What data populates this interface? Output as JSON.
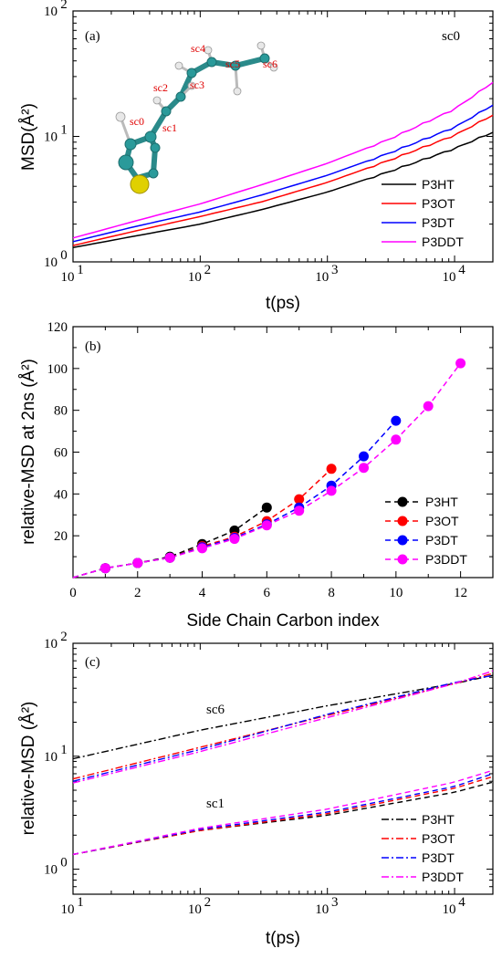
{
  "chart_data": [
    {
      "panel_label": "(a)",
      "type": "line",
      "xlabel": "t(ps)",
      "ylabel": "MSD(Å²)",
      "xscale": "log",
      "yscale": "log",
      "xlim": [
        10,
        20000
      ],
      "ylim": [
        1,
        100
      ],
      "x_ticks": [
        "10",
        "10",
        "10",
        "10"
      ],
      "x_tick_exponents": [
        "1",
        "2",
        "3",
        "4"
      ],
      "y_ticks": [
        "10",
        "10",
        "10"
      ],
      "y_tick_exponents": [
        "0",
        "1",
        "2"
      ],
      "annotation": "sc0",
      "legend_position": "bottom-right",
      "molecule_labels": [
        "sc0",
        "sc1",
        "sc2",
        "sc3",
        "sc4",
        "sc5",
        "sc6"
      ],
      "series": [
        {
          "name": "P3HT",
          "color": "#000000",
          "x": [
            10,
            30,
            100,
            300,
            1000,
            3000,
            10000,
            20000
          ],
          "y": [
            1.3,
            1.6,
            2.0,
            2.6,
            3.6,
            5.2,
            8.0,
            10.8
          ]
        },
        {
          "name": "P3OT",
          "color": "#ff0000",
          "x": [
            10,
            30,
            100,
            300,
            1000,
            3000,
            10000,
            20000
          ],
          "y": [
            1.35,
            1.75,
            2.3,
            3.0,
            4.3,
            6.4,
            10.2,
            14.8
          ]
        },
        {
          "name": "P3DT",
          "color": "#0000ff",
          "x": [
            10,
            30,
            100,
            300,
            1000,
            3000,
            10000,
            20000
          ],
          "y": [
            1.45,
            1.9,
            2.5,
            3.4,
            4.9,
            7.3,
            11.8,
            17.8
          ]
        },
        {
          "name": "P3DDT",
          "color": "#ff00ff",
          "x": [
            10,
            30,
            100,
            300,
            1000,
            3000,
            10000,
            20000
          ],
          "y": [
            1.55,
            2.1,
            2.9,
            4.1,
            6.1,
            9.4,
            16.5,
            27.0
          ]
        }
      ]
    },
    {
      "panel_label": "(b)",
      "type": "scatter",
      "xlabel": "Side Chain Carbon index",
      "ylabel": "relative-MSD at 2ns (Å²)",
      "xlim": [
        0,
        13
      ],
      "ylim": [
        0,
        120
      ],
      "x_ticks": [
        "0",
        "2",
        "4",
        "6",
        "8",
        "10",
        "12"
      ],
      "y_ticks": [
        "20",
        "40",
        "60",
        "80",
        "100",
        "120"
      ],
      "legend_position": "bottom-right",
      "series": [
        {
          "name": "P3HT",
          "color": "#000000",
          "x": [
            0,
            1,
            2,
            3,
            4,
            5,
            6
          ],
          "y": [
            0,
            4.5,
            7.0,
            10.0,
            16.0,
            22.5,
            33.5
          ]
        },
        {
          "name": "P3OT",
          "color": "#ff0000",
          "x": [
            0,
            1,
            2,
            3,
            4,
            5,
            6,
            7,
            8
          ],
          "y": [
            0,
            4.5,
            7.0,
            9.5,
            15.0,
            19.5,
            27.0,
            37.5,
            52.0
          ]
        },
        {
          "name": "P3DT",
          "color": "#0000ff",
          "x": [
            0,
            1,
            2,
            3,
            4,
            5,
            6,
            7,
            8,
            9,
            10
          ],
          "y": [
            0,
            4.5,
            7.0,
            9.5,
            14.5,
            19.0,
            25.5,
            33.5,
            44.0,
            58.0,
            75.0
          ]
        },
        {
          "name": "P3DDT",
          "color": "#ff00ff",
          "x": [
            0,
            1,
            2,
            3,
            4,
            5,
            6,
            7,
            8,
            9,
            10,
            11,
            12
          ],
          "y": [
            0,
            4.5,
            7.0,
            9.5,
            14.0,
            18.5,
            25.0,
            32.0,
            41.5,
            52.5,
            66.0,
            82.0,
            102.5
          ]
        }
      ]
    },
    {
      "panel_label": "(c)",
      "type": "line",
      "xlabel": "t(ps)",
      "ylabel": "relative-MSD (Å²)",
      "xscale": "log",
      "yscale": "log",
      "xlim": [
        10,
        20000
      ],
      "ylim": [
        0.6,
        100
      ],
      "x_ticks": [
        "10",
        "10",
        "10",
        "10"
      ],
      "x_tick_exponents": [
        "1",
        "2",
        "3",
        "4"
      ],
      "y_ticks": [
        "10",
        "10",
        "10"
      ],
      "y_tick_exponents": [
        "0",
        "1",
        "2"
      ],
      "group_labels": [
        "sc6",
        "sc1"
      ],
      "legend_position": "bottom-right",
      "series": [
        {
          "name": "P3HT",
          "group": "sc6",
          "color": "#000000",
          "x": [
            10,
            100,
            1000,
            10000,
            20000
          ],
          "y": [
            9.5,
            17.0,
            28.0,
            44.0,
            52.0
          ]
        },
        {
          "name": "P3OT",
          "group": "sc6",
          "color": "#ff0000",
          "x": [
            10,
            100,
            1000,
            10000,
            20000
          ],
          "y": [
            6.3,
            12.0,
            23.0,
            44.0,
            54.0
          ]
        },
        {
          "name": "P3DT",
          "group": "sc6",
          "color": "#0000ff",
          "x": [
            10,
            100,
            1000,
            10000,
            20000
          ],
          "y": [
            6.0,
            11.5,
            23.5,
            45.0,
            52.0
          ]
        },
        {
          "name": "P3DDT",
          "group": "sc6",
          "color": "#ff00ff",
          "x": [
            10,
            100,
            1000,
            10000,
            20000
          ],
          "y": [
            5.8,
            11.0,
            22.0,
            44.0,
            57.0
          ]
        },
        {
          "name": "P3HT",
          "group": "sc1",
          "color": "#000000",
          "x": [
            10,
            100,
            1000,
            10000,
            20000
          ],
          "y": [
            1.35,
            2.2,
            3.0,
            4.8,
            5.9
          ]
        },
        {
          "name": "P3OT",
          "group": "sc1",
          "color": "#ff0000",
          "x": [
            10,
            100,
            1000,
            10000,
            20000
          ],
          "y": [
            1.35,
            2.2,
            3.1,
            5.2,
            6.6
          ]
        },
        {
          "name": "P3DT",
          "group": "sc1",
          "color": "#0000ff",
          "x": [
            10,
            100,
            1000,
            10000,
            20000
          ],
          "y": [
            1.35,
            2.25,
            3.2,
            5.4,
            7.0
          ]
        },
        {
          "name": "P3DDT",
          "group": "sc1",
          "color": "#ff00ff",
          "x": [
            10,
            100,
            1000,
            10000,
            20000
          ],
          "y": [
            1.35,
            2.3,
            3.4,
            5.9,
            7.5
          ]
        }
      ]
    }
  ]
}
